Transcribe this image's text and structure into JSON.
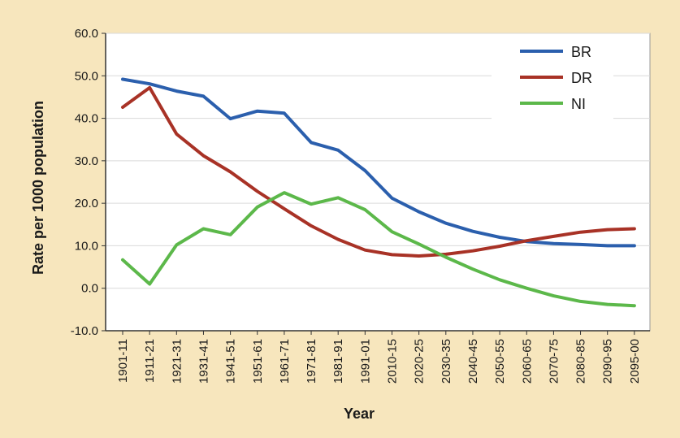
{
  "chart_data": {
    "type": "line",
    "title": "",
    "xlabel": "Year",
    "ylabel": "Rate per 1000 population",
    "ylim": [
      -10,
      60
    ],
    "yticks": [
      -10,
      0,
      10,
      20,
      30,
      40,
      50,
      60
    ],
    "ytick_labels": [
      "-10.0",
      "0.0",
      "10.0",
      "20.0",
      "30.0",
      "40.0",
      "50.0",
      "60.0"
    ],
    "grid": true,
    "legend_position": "top-right",
    "categories": [
      "1901-11",
      "1911-21",
      "1921-31",
      "1931-41",
      "1941-51",
      "1951-61",
      "1961-71",
      "1971-81",
      "1981-91",
      "1991-01",
      "2010-15",
      "2020-25",
      "2030-35",
      "2040-45",
      "2050-55",
      "2060-65",
      "2070-75",
      "2080-85",
      "2090-95",
      "2095-00"
    ],
    "series": [
      {
        "name": "BR",
        "color": "#2b5fad",
        "values": [
          49.2,
          48.1,
          46.4,
          45.2,
          39.9,
          41.7,
          41.2,
          34.3,
          32.5,
          27.7,
          21.2,
          18.0,
          15.3,
          13.4,
          12.0,
          11.0,
          10.5,
          10.3,
          10.0,
          10.0
        ]
      },
      {
        "name": "DR",
        "color": "#a83226",
        "values": [
          42.6,
          47.2,
          36.3,
          31.2,
          27.4,
          22.8,
          18.7,
          14.7,
          11.5,
          9.0,
          7.9,
          7.6,
          8.0,
          8.8,
          9.9,
          11.2,
          12.2,
          13.2,
          13.8,
          14.0
        ]
      },
      {
        "name": "NI",
        "color": "#5cb84a",
        "values": [
          6.7,
          1.0,
          10.2,
          14.0,
          12.6,
          19.1,
          22.5,
          19.8,
          21.3,
          18.5,
          13.3,
          10.4,
          7.3,
          4.5,
          2.0,
          0.0,
          -1.8,
          -3.1,
          -3.8,
          -4.1
        ]
      }
    ]
  }
}
